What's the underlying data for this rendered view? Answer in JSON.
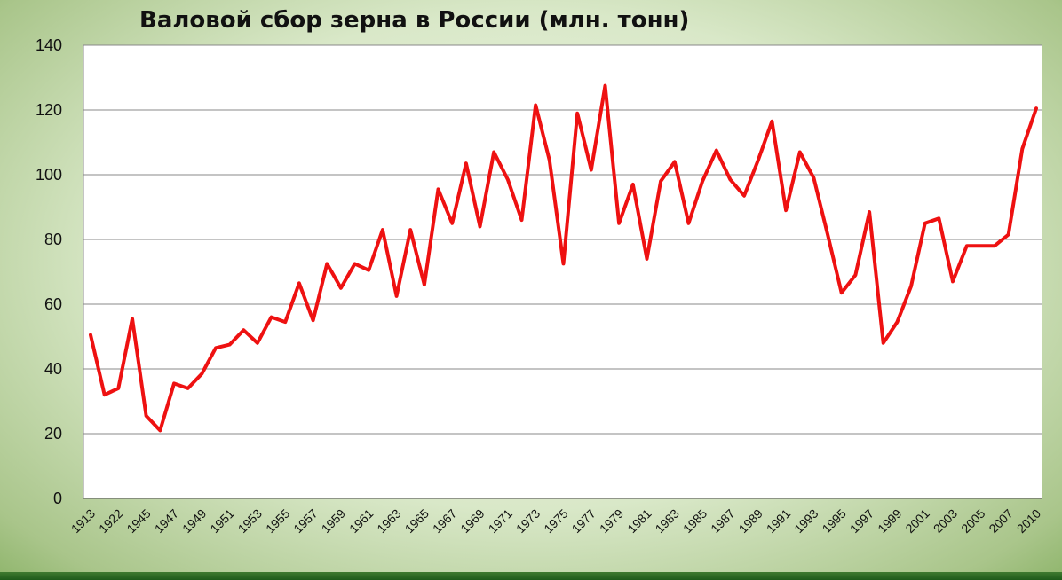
{
  "chart_data": {
    "type": "line",
    "title": "Валовой сбор зерна в России (млн. тонн)",
    "xlabel": "",
    "ylabel": "",
    "ylim": [
      0,
      140
    ],
    "y_ticks": [
      "0",
      "20",
      "40",
      "60",
      "80",
      "100",
      "120",
      "140"
    ],
    "x_tick_labels": [
      "1913",
      "1922",
      "1945",
      "1947",
      "1949",
      "1951",
      "1953",
      "1955",
      "1957",
      "1959",
      "1961",
      "1963",
      "1965",
      "1967",
      "1969",
      "1971",
      "1973",
      "1975",
      "1977",
      "1979",
      "1981",
      "1983",
      "1985",
      "1987",
      "1989",
      "1991",
      "1993",
      "1995",
      "1997",
      "1999",
      "2001",
      "2003",
      "2005",
      "2007",
      "2010"
    ],
    "grid": true,
    "legend": "none",
    "colors": {
      "line": "#ee1111",
      "plot_bg": "#ffffff",
      "grid": "#888888"
    },
    "series": [
      {
        "x": [
          "1913",
          "1921",
          "1922",
          "1940",
          "1945",
          "1946",
          "1947",
          "1948",
          "1949",
          "1950",
          "1951",
          "1952",
          "1953",
          "1954",
          "1955",
          "1956",
          "1957",
          "1958",
          "1959",
          "1960",
          "1961",
          "1962",
          "1963",
          "1964",
          "1965",
          "1966",
          "1967",
          "1968",
          "1969",
          "1970",
          "1971",
          "1972",
          "1973",
          "1974",
          "1975",
          "1976",
          "1977",
          "1978",
          "1979",
          "1980",
          "1981",
          "1982",
          "1983",
          "1984",
          "1985",
          "1986",
          "1987",
          "1988",
          "1989",
          "1990",
          "1991",
          "1992",
          "1993",
          "1994",
          "1995",
          "1996",
          "1997",
          "1998",
          "1999",
          "2000",
          "2001",
          "2002",
          "2003",
          "2004",
          "2005",
          "2006",
          "2007",
          "2008",
          "2010"
        ],
        "values": [
          50.5,
          32,
          34,
          55.5,
          25.5,
          21,
          35.5,
          34,
          38.5,
          46.5,
          47.5,
          52,
          48,
          56,
          54.5,
          66.5,
          55,
          72.5,
          65,
          72.5,
          70.5,
          83,
          62.5,
          83,
          66,
          95.5,
          85,
          103.5,
          84,
          107,
          98.5,
          86,
          121.5,
          104.5,
          72.5,
          119,
          101.5,
          127.5,
          85,
          97,
          74,
          98,
          104,
          85,
          98,
          107.5,
          98.5,
          93.5,
          104.5,
          116.5,
          89,
          107,
          99,
          81.5,
          63.5,
          69,
          88.5,
          48,
          54.5,
          65.5,
          85,
          86.5,
          67,
          78,
          78,
          78,
          81.5,
          108,
          120.5
        ]
      }
    ]
  }
}
